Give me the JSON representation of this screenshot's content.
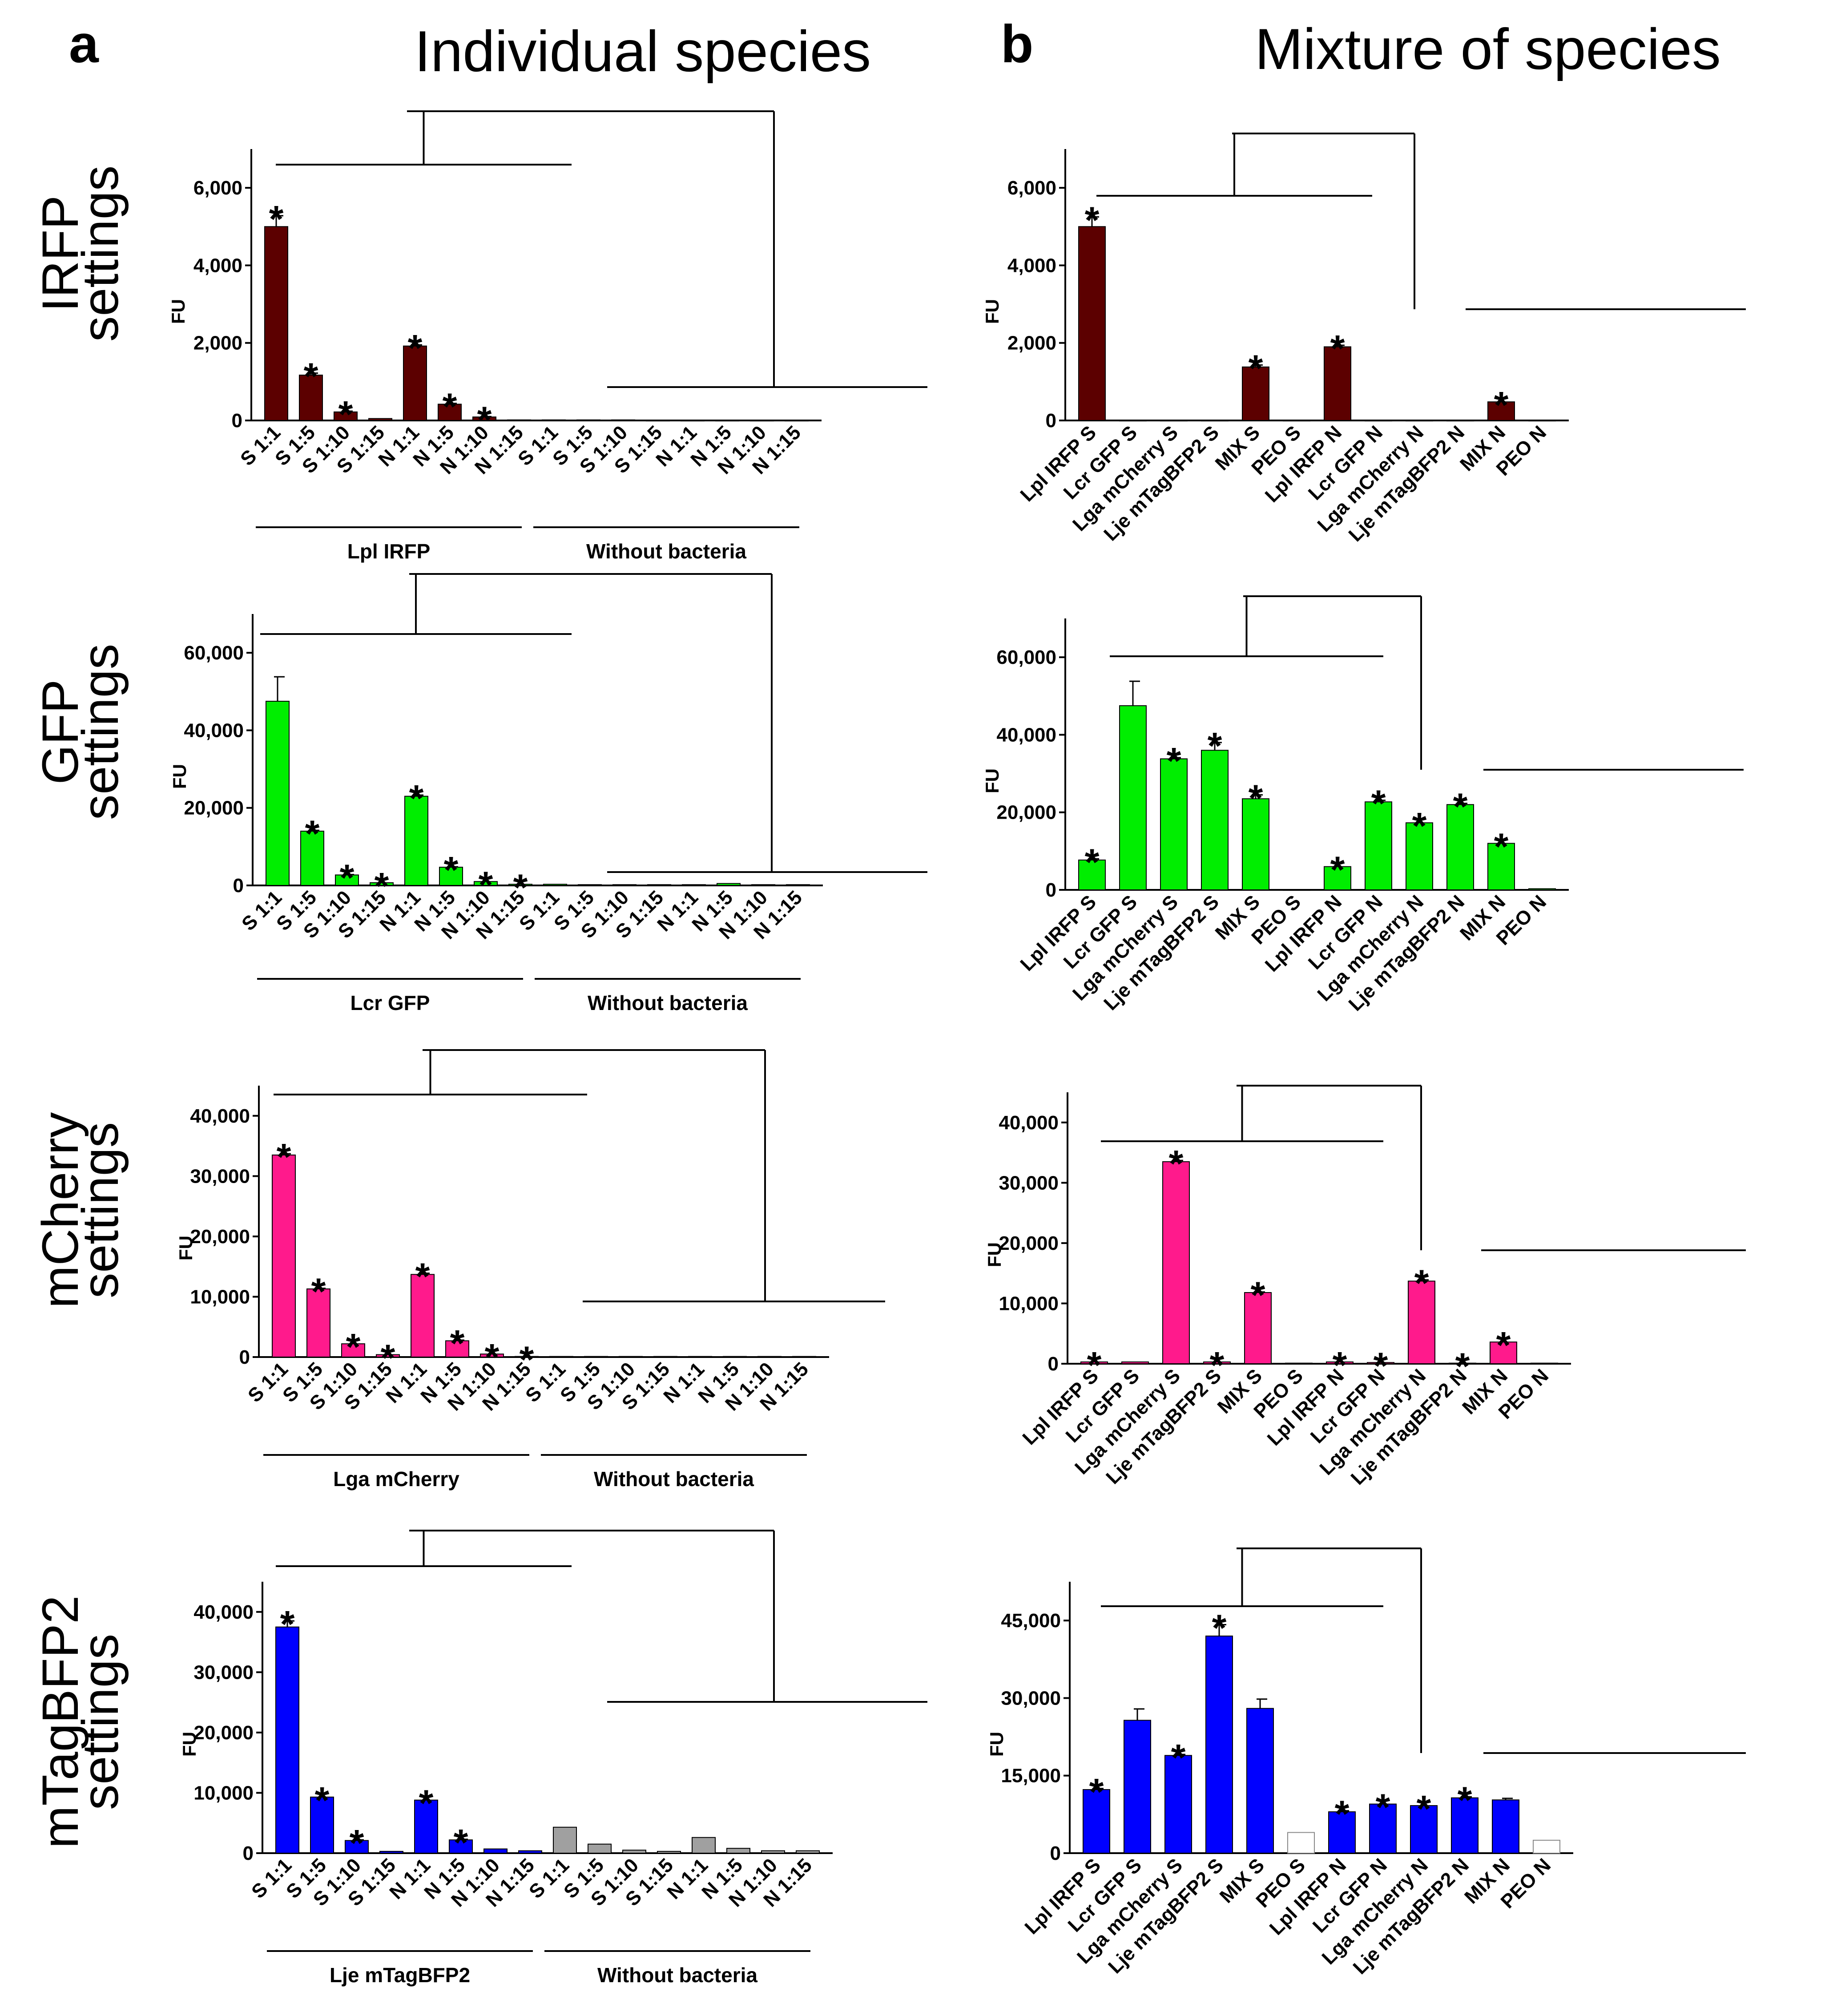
{
  "panel_labels": {
    "a": "a",
    "b": "b"
  },
  "column_titles": {
    "left": "Individual species",
    "right": "Mixture of species"
  },
  "row_labels": [
    {
      "line1": "IRFP",
      "line2": "settings"
    },
    {
      "line1": "GFP",
      "line2": "settings"
    },
    {
      "line1": "mCherry",
      "line2": "settings"
    },
    {
      "line1": "mTagBFP2",
      "line2": "settings"
    }
  ],
  "colors": {
    "IRFP": "#5c0000",
    "GFP": "#00ee00",
    "mCherry": "#ff1a8c",
    "mTagBFP2": "#0000ff",
    "grey": "#a0a0a0",
    "white": "#ffffff"
  },
  "chart_data": [
    {
      "id": "a1",
      "type": "bar",
      "ylabel": "FU",
      "ylim": [
        0,
        7000
      ],
      "yticks": [
        0,
        2000,
        4000,
        6000
      ],
      "ytick_labels": [
        "0",
        "2,000",
        "4,000",
        "6,000"
      ],
      "categories": [
        "S 1:1",
        "S 1:5",
        "S 1:10",
        "S 1:15",
        "N 1:1",
        "N 1:5",
        "N 1:10",
        "N 1:15",
        "S 1:1",
        "S 1:5",
        "S 1:10",
        "S 1:15",
        "N 1:1",
        "N 1:5",
        "N 1:10",
        "N 1:15"
      ],
      "values": [
        5000,
        1170,
        220,
        50,
        1920,
        420,
        90,
        15,
        15,
        15,
        15,
        10,
        10,
        10,
        10,
        10
      ],
      "errors": [
        280,
        50,
        20,
        0,
        30,
        20,
        10,
        0,
        0,
        0,
        0,
        0,
        0,
        0,
        0,
        0
      ],
      "color_keys": [
        "IRFP",
        "IRFP",
        "IRFP",
        "IRFP",
        "IRFP",
        "IRFP",
        "IRFP",
        "IRFP",
        "IRFP",
        "IRFP",
        "IRFP",
        "IRFP",
        "IRFP",
        "IRFP",
        "IRFP",
        "IRFP"
      ],
      "stars": [
        true,
        true,
        true,
        false,
        true,
        true,
        true,
        false,
        false,
        false,
        false,
        false,
        false,
        false,
        false,
        false
      ],
      "groups": [
        {
          "label": "Lpl IRFP",
          "from": 0,
          "to": 7
        },
        {
          "label": "Without bacteria",
          "from": 8,
          "to": 15
        }
      ]
    },
    {
      "id": "a2",
      "type": "bar",
      "ylabel": "FU",
      "ylim": [
        0,
        70000
      ],
      "yticks": [
        0,
        20000,
        40000,
        60000
      ],
      "ytick_labels": [
        "0",
        "20,000",
        "40,000",
        "60,000"
      ],
      "categories": [
        "S 1:1",
        "S 1:5",
        "S 1:10",
        "S 1:15",
        "N 1:1",
        "N 1:5",
        "N 1:10",
        "N 1:15",
        "S 1:1",
        "S 1:5",
        "S 1:10",
        "S 1:15",
        "N 1:1",
        "N 1:5",
        "N 1:10",
        "N 1:15"
      ],
      "values": [
        47500,
        14000,
        2700,
        700,
        23000,
        4700,
        1000,
        300,
        300,
        200,
        200,
        200,
        200,
        500,
        200,
        200
      ],
      "errors": [
        6300,
        200,
        100,
        0,
        300,
        100,
        0,
        0,
        0,
        0,
        0,
        0,
        0,
        0,
        0,
        0
      ],
      "color_keys": [
        "GFP",
        "GFP",
        "GFP",
        "GFP",
        "GFP",
        "GFP",
        "GFP",
        "GFP",
        "GFP",
        "GFP",
        "GFP",
        "GFP",
        "GFP",
        "GFP",
        "GFP",
        "GFP"
      ],
      "stars": [
        false,
        true,
        true,
        true,
        true,
        true,
        true,
        true,
        false,
        false,
        false,
        false,
        false,
        false,
        false,
        false
      ],
      "groups": [
        {
          "label": "Lcr GFP",
          "from": 0,
          "to": 7
        },
        {
          "label": "Without bacteria",
          "from": 8,
          "to": 15
        }
      ]
    },
    {
      "id": "a3",
      "type": "bar",
      "ylabel": "FU",
      "ylim": [
        0,
        45000
      ],
      "yticks": [
        0,
        10000,
        20000,
        30000,
        40000
      ],
      "ytick_labels": [
        "0",
        "10,000",
        "20,000",
        "30,000",
        "40,000"
      ],
      "categories": [
        "S 1:1",
        "S 1:5",
        "S 1:10",
        "S 1:15",
        "N 1:1",
        "N 1:5",
        "N 1:10",
        "N 1:15",
        "S 1:1",
        "S 1:5",
        "S 1:10",
        "S 1:15",
        "N 1:1",
        "N 1:5",
        "N 1:10",
        "N 1:15"
      ],
      "values": [
        33500,
        11300,
        2200,
        400,
        13700,
        2700,
        500,
        100,
        100,
        100,
        100,
        100,
        100,
        100,
        100,
        100
      ],
      "errors": [
        200,
        100,
        0,
        0,
        200,
        100,
        0,
        0,
        0,
        0,
        0,
        0,
        0,
        0,
        0,
        0
      ],
      "color_keys": [
        "mCherry",
        "mCherry",
        "mCherry",
        "mCherry",
        "mCherry",
        "mCherry",
        "mCherry",
        "mCherry",
        "mCherry",
        "mCherry",
        "mCherry",
        "mCherry",
        "mCherry",
        "mCherry",
        "mCherry",
        "mCherry"
      ],
      "stars": [
        true,
        true,
        true,
        true,
        true,
        true,
        true,
        true,
        false,
        false,
        false,
        false,
        false,
        false,
        false,
        false
      ],
      "groups": [
        {
          "label": "Lga mCherry",
          "from": 0,
          "to": 7
        },
        {
          "label": "Without bacteria",
          "from": 8,
          "to": 15
        }
      ]
    },
    {
      "id": "a4",
      "type": "bar",
      "ylabel": "FU",
      "ylim": [
        0,
        45000
      ],
      "yticks": [
        0,
        10000,
        20000,
        30000,
        40000
      ],
      "ytick_labels": [
        "0",
        "10,000",
        "20,000",
        "30,000",
        "40,000"
      ],
      "categories": [
        "S 1:1",
        "S 1:5",
        "S 1:10",
        "S 1:15",
        "N 1:1",
        "N 1:5",
        "N 1:10",
        "N 1:15",
        "S 1:1",
        "S 1:5",
        "S 1:10",
        "S 1:15",
        "N 1:1",
        "N 1:5",
        "N 1:10",
        "N 1:15"
      ],
      "values": [
        37500,
        9300,
        2100,
        300,
        8800,
        2200,
        700,
        400,
        4300,
        1500,
        500,
        300,
        2600,
        800,
        400,
        400
      ],
      "errors": [
        1000,
        0,
        100,
        0,
        0,
        100,
        0,
        0,
        0,
        0,
        0,
        0,
        0,
        0,
        0,
        0
      ],
      "color_keys": [
        "mTagBFP2",
        "mTagBFP2",
        "mTagBFP2",
        "mTagBFP2",
        "mTagBFP2",
        "mTagBFP2",
        "mTagBFP2",
        "mTagBFP2",
        "grey",
        "grey",
        "grey",
        "grey",
        "grey",
        "grey",
        "grey",
        "grey"
      ],
      "stars": [
        true,
        true,
        true,
        false,
        true,
        true,
        false,
        false,
        false,
        false,
        false,
        false,
        false,
        false,
        false,
        false
      ],
      "groups": [
        {
          "label": "Lje mTagBFP2",
          "from": 0,
          "to": 7
        },
        {
          "label": "Without bacteria",
          "from": 8,
          "to": 15
        }
      ]
    },
    {
      "id": "b1",
      "type": "bar",
      "ylabel": "FU",
      "ylim": [
        0,
        7000
      ],
      "yticks": [
        0,
        2000,
        4000,
        6000
      ],
      "ytick_labels": [
        "0",
        "2,000",
        "4,000",
        "6,000"
      ],
      "categories": [
        "Lpl IRFP S",
        "Lcr GFP S",
        "Lga mCherry S",
        "Lje mTagBFP2 S",
        "MIX S",
        "PEO S",
        "Lpl IRFP N",
        "Lcr GFP N",
        "Lga mCherry N",
        "Lje mTagBFP2 N",
        "MIX N",
        "PEO N"
      ],
      "values": [
        5000,
        10,
        10,
        10,
        1380,
        10,
        1900,
        10,
        10,
        10,
        480,
        10
      ],
      "errors": [
        250,
        0,
        0,
        0,
        50,
        0,
        40,
        0,
        0,
        0,
        0,
        0
      ],
      "color_keys": [
        "IRFP",
        "IRFP",
        "IRFP",
        "IRFP",
        "IRFP",
        "IRFP",
        "IRFP",
        "IRFP",
        "IRFP",
        "IRFP",
        "IRFP",
        "IRFP"
      ],
      "stars": [
        true,
        false,
        false,
        false,
        true,
        false,
        true,
        false,
        false,
        false,
        true,
        false
      ]
    },
    {
      "id": "b2",
      "type": "bar",
      "ylabel": "FU",
      "ylim": [
        0,
        70000
      ],
      "yticks": [
        0,
        20000,
        40000,
        60000
      ],
      "ytick_labels": [
        "0",
        "20,000",
        "40,000",
        "60,000"
      ],
      "categories": [
        "Lpl IRFP S",
        "Lcr GFP S",
        "Lga mCherry S",
        "Lje mTagBFP2 S",
        "MIX S",
        "PEO S",
        "Lpl IRFP N",
        "Lcr GFP N",
        "Lga mCherry N",
        "Lje mTagBFP2 N",
        "MIX N",
        "PEO N"
      ],
      "values": [
        7700,
        47500,
        33800,
        36000,
        23500,
        100,
        6000,
        22700,
        17300,
        22000,
        12000,
        300
      ],
      "errors": [
        300,
        6300,
        300,
        2000,
        1000,
        0,
        0,
        400,
        0,
        300,
        0,
        0
      ],
      "color_keys": [
        "GFP",
        "GFP",
        "GFP",
        "GFP",
        "GFP",
        "GFP",
        "GFP",
        "GFP",
        "GFP",
        "GFP",
        "GFP",
        "GFP"
      ],
      "stars": [
        true,
        false,
        true,
        true,
        true,
        false,
        true,
        true,
        true,
        true,
        true,
        false
      ]
    },
    {
      "id": "b3",
      "type": "bar",
      "ylabel": "FU",
      "ylim": [
        0,
        45000
      ],
      "yticks": [
        0,
        10000,
        20000,
        30000,
        40000
      ],
      "ytick_labels": [
        "0",
        "10,000",
        "20,000",
        "30,000",
        "40,000"
      ],
      "categories": [
        "Lpl IRFP S",
        "Lcr GFP S",
        "Lga mCherry S",
        "Lje mTagBFP2 S",
        "MIX S",
        "PEO S",
        "Lpl IRFP N",
        "Lcr GFP N",
        "Lga mCherry N",
        "Lje mTagBFP2 N",
        "MIX N",
        "PEO N"
      ],
      "values": [
        300,
        300,
        33500,
        300,
        11800,
        100,
        300,
        200,
        13700,
        100,
        3600,
        100
      ],
      "errors": [
        0,
        0,
        200,
        0,
        100,
        0,
        0,
        0,
        200,
        0,
        0,
        0
      ],
      "color_keys": [
        "mCherry",
        "mCherry",
        "mCherry",
        "mCherry",
        "mCherry",
        "mCherry",
        "mCherry",
        "mCherry",
        "mCherry",
        "mCherry",
        "mCherry",
        "mCherry"
      ],
      "stars": [
        true,
        false,
        true,
        true,
        true,
        false,
        true,
        true,
        true,
        true,
        true,
        false
      ]
    },
    {
      "id": "b4",
      "type": "bar",
      "ylabel": "FU",
      "ylim": [
        0,
        52500
      ],
      "yticks": [
        0,
        15000,
        30000,
        45000
      ],
      "ytick_labels": [
        "0",
        "15,000",
        "30,000",
        "45,000"
      ],
      "categories": [
        "Lpl IRFP S",
        "Lcr GFP S",
        "Lga mCherry S",
        "Lje mTagBFP2 S",
        "MIX S",
        "PEO S",
        "Lpl IRFP N",
        "Lcr GFP N",
        "Lga mCherry N",
        "Lje mTagBFP2 N",
        "MIX N",
        "PEO N"
      ],
      "values": [
        12300,
        25700,
        18900,
        42000,
        28000,
        4000,
        8000,
        9500,
        9200,
        10700,
        10300,
        2500
      ],
      "errors": [
        200,
        2200,
        200,
        2200,
        1800,
        0,
        200,
        0,
        0,
        200,
        300,
        0
      ],
      "color_keys": [
        "mTagBFP2",
        "mTagBFP2",
        "mTagBFP2",
        "mTagBFP2",
        "mTagBFP2",
        "white",
        "mTagBFP2",
        "mTagBFP2",
        "mTagBFP2",
        "mTagBFP2",
        "mTagBFP2",
        "white"
      ],
      "stars": [
        true,
        false,
        true,
        true,
        false,
        false,
        true,
        true,
        true,
        true,
        false,
        false
      ]
    }
  ]
}
